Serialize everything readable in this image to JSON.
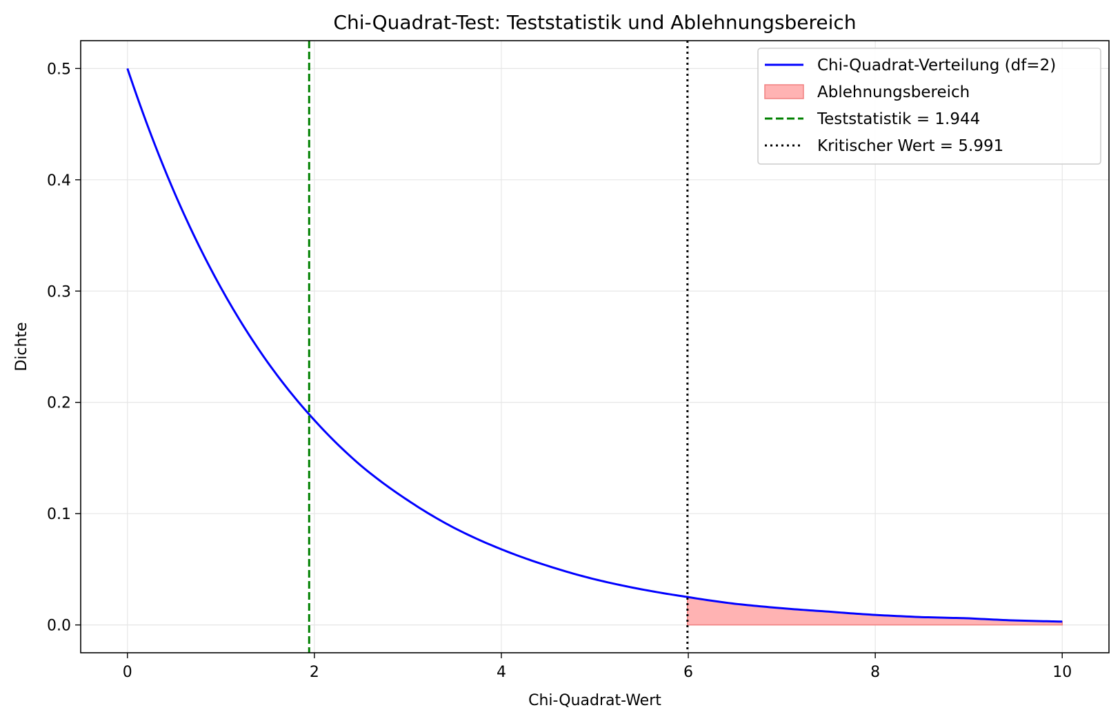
{
  "chart_data": {
    "type": "line",
    "title": "Chi-Quadrat-Test: Teststatistik und Ablehnungsbereich",
    "xlabel": "Chi-Quadrat-Wert",
    "ylabel": "Dichte",
    "xlim": [
      -0.5,
      10.5
    ],
    "ylim": [
      -0.025,
      0.525
    ],
    "x_ticks": [
      0,
      2,
      4,
      6,
      8,
      10
    ],
    "y_ticks": [
      0.0,
      0.1,
      0.2,
      0.3,
      0.4,
      0.5
    ],
    "x_tick_labels": [
      "0",
      "2",
      "4",
      "6",
      "8",
      "10"
    ],
    "y_tick_labels": [
      "0.0",
      "0.1",
      "0.2",
      "0.3",
      "0.4",
      "0.5"
    ],
    "grid": true,
    "legend_position": "top-right",
    "series": [
      {
        "name": "Chi-Quadrat-Verteilung (df=2)",
        "color": "#0000ff",
        "x": [
          0,
          0.5,
          1,
          1.5,
          2,
          2.5,
          3,
          3.5,
          4,
          4.5,
          5,
          5.5,
          6,
          6.5,
          7,
          7.5,
          8,
          8.5,
          9,
          9.5,
          10
        ],
        "y": [
          0.5,
          0.389,
          0.303,
          0.236,
          0.184,
          0.143,
          0.112,
          0.087,
          0.068,
          0.053,
          0.041,
          0.032,
          0.025,
          0.019,
          0.015,
          0.012,
          0.009,
          0.007,
          0.006,
          0.004,
          0.003
        ]
      }
    ],
    "rejection_region": {
      "name": "Ablehnungsbereich",
      "color": "#ffb3b3",
      "edge_color": "#f08080",
      "from": 5.991,
      "to": 10
    },
    "vlines": [
      {
        "name": "Teststatistik = 1.944",
        "x": 1.944,
        "color": "#008000",
        "style": "dashed"
      },
      {
        "name": "Kritischer Wert = 5.991",
        "x": 5.991,
        "color": "#000000",
        "style": "dotted"
      }
    ]
  }
}
